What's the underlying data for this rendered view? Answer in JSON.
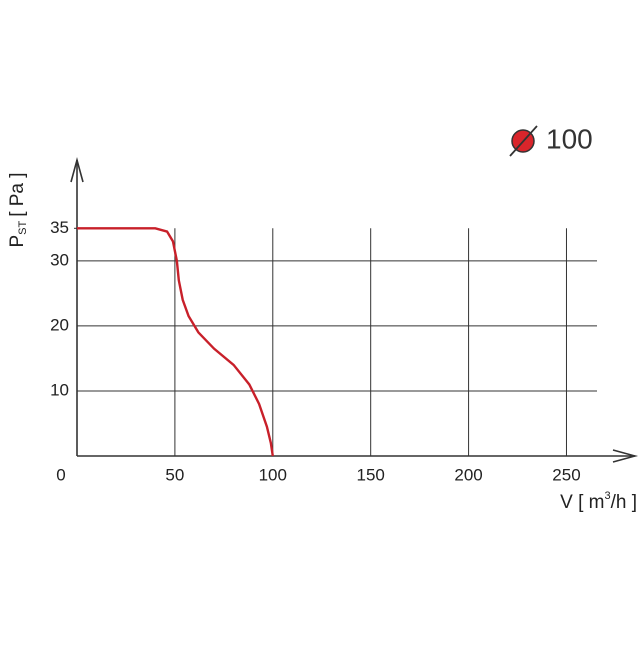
{
  "chart_data": {
    "type": "line",
    "x_label_parts": [
      "V [ m",
      "3",
      "/h ]"
    ],
    "y_label_parts": [
      "P",
      "ST",
      "[ Pa ]"
    ],
    "x": [
      0,
      20,
      40,
      46,
      49,
      51,
      52,
      54,
      57,
      62,
      70,
      80,
      88,
      93,
      97,
      99,
      100
    ],
    "series": [
      {
        "name": "100",
        "color": "#c8202a",
        "values": [
          35,
          35,
          35,
          34.5,
          33,
          30,
          27,
          24,
          21.5,
          19,
          16.5,
          14,
          11,
          8,
          4.5,
          2,
          0
        ]
      }
    ],
    "xlim": [
      0,
      285
    ],
    "ylim": [
      0,
      45.5
    ],
    "xticks": [
      0,
      50,
      100,
      150,
      200,
      250
    ],
    "yticks": [
      10,
      20,
      30,
      35
    ],
    "grid": true
  }
}
